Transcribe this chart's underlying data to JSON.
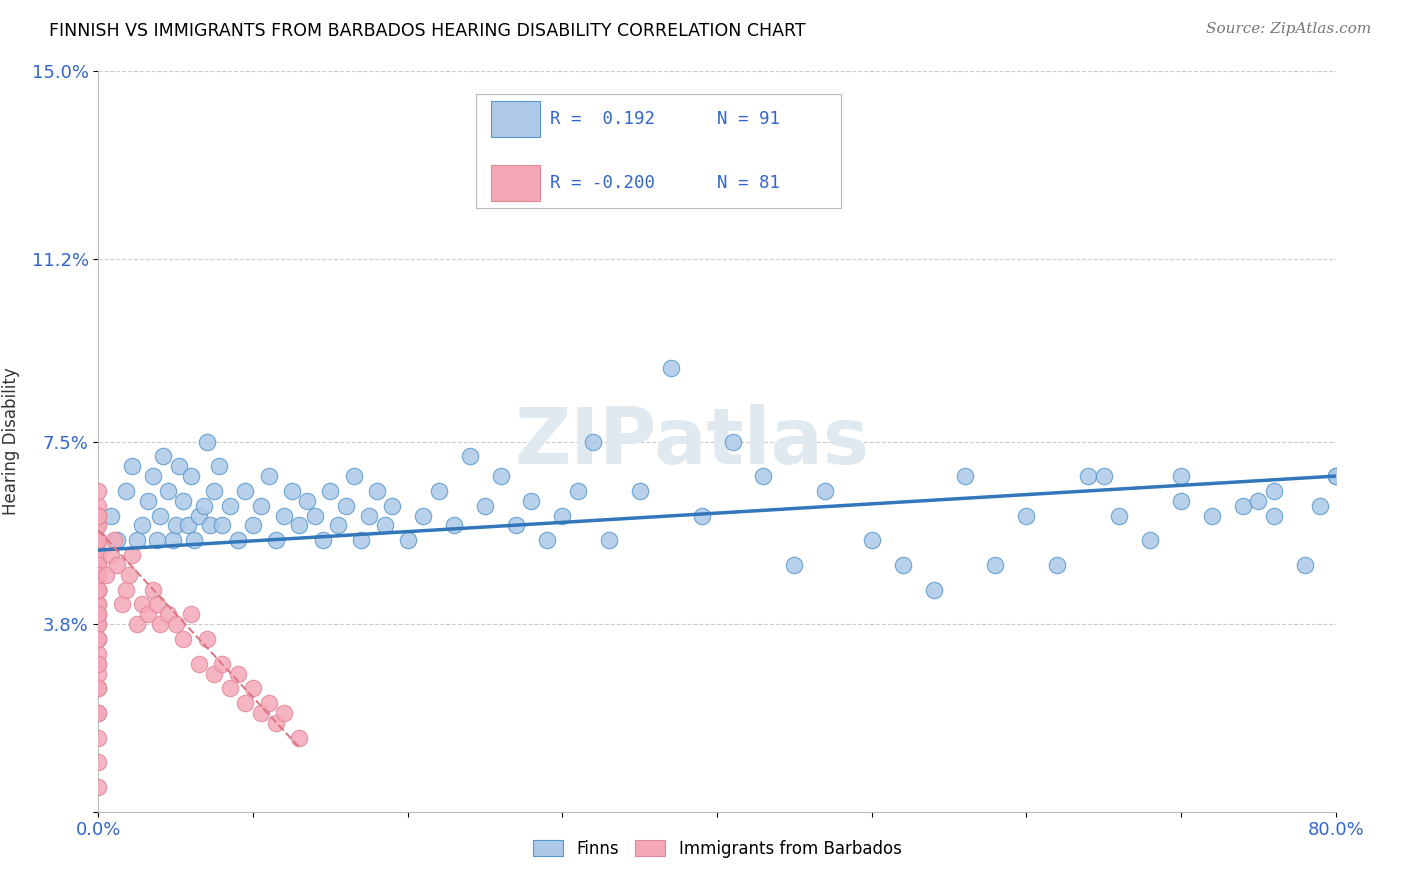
{
  "title": "FINNISH VS IMMIGRANTS FROM BARBADOS HEARING DISABILITY CORRELATION CHART",
  "source": "Source: ZipAtlas.com",
  "ylabel": "Hearing Disability",
  "xlim": [
    0.0,
    0.8
  ],
  "ylim": [
    0.0,
    0.15
  ],
  "xtick_positions": [
    0.0,
    0.1,
    0.2,
    0.3,
    0.4,
    0.5,
    0.6,
    0.7,
    0.8
  ],
  "xtick_labels": [
    "0.0%",
    "",
    "",
    "",
    "",
    "",
    "",
    "",
    "80.0%"
  ],
  "ytick_values": [
    0.0,
    0.038,
    0.075,
    0.112,
    0.15
  ],
  "ytick_labels": [
    "",
    "3.8%",
    "7.5%",
    "11.2%",
    "15.0%"
  ],
  "legend_line1": "R =  0.192   N = 91",
  "legend_line2": "R = -0.200   N = 81",
  "legend_label1": "Finns",
  "legend_label2": "Immigrants from Barbados",
  "color_finns": "#adc8e8",
  "color_immigrants": "#f4a8b8",
  "color_finns_edge": "#5599cc",
  "color_immigrants_edge": "#e08898",
  "color_finns_line": "#3377bb",
  "color_immigrants_line": "#dd7788",
  "color_r_text": "#3366cc",
  "color_n_text": "#3366cc",
  "watermark_text": "ZIPatlas",
  "background_color": "#ffffff",
  "grid_color": "#cccccc",
  "finns_x": [
    0.008,
    0.012,
    0.018,
    0.022,
    0.025,
    0.028,
    0.032,
    0.035,
    0.038,
    0.04,
    0.042,
    0.045,
    0.048,
    0.05,
    0.052,
    0.055,
    0.058,
    0.06,
    0.062,
    0.065,
    0.068,
    0.07,
    0.072,
    0.075,
    0.078,
    0.08,
    0.085,
    0.09,
    0.095,
    0.1,
    0.105,
    0.11,
    0.115,
    0.12,
    0.125,
    0.13,
    0.135,
    0.14,
    0.145,
    0.15,
    0.155,
    0.16,
    0.165,
    0.17,
    0.175,
    0.18,
    0.185,
    0.19,
    0.2,
    0.21,
    0.22,
    0.23,
    0.24,
    0.25,
    0.26,
    0.27,
    0.28,
    0.29,
    0.3,
    0.31,
    0.32,
    0.33,
    0.35,
    0.37,
    0.39,
    0.41,
    0.43,
    0.45,
    0.47,
    0.5,
    0.52,
    0.54,
    0.56,
    0.58,
    0.6,
    0.62,
    0.64,
    0.66,
    0.68,
    0.7,
    0.72,
    0.74,
    0.76,
    0.78,
    0.79,
    0.8,
    0.65,
    0.7,
    0.75,
    0.8,
    0.76
  ],
  "finns_y": [
    0.06,
    0.055,
    0.065,
    0.07,
    0.055,
    0.058,
    0.063,
    0.068,
    0.055,
    0.06,
    0.072,
    0.065,
    0.055,
    0.058,
    0.07,
    0.063,
    0.058,
    0.068,
    0.055,
    0.06,
    0.062,
    0.075,
    0.058,
    0.065,
    0.07,
    0.058,
    0.062,
    0.055,
    0.065,
    0.058,
    0.062,
    0.068,
    0.055,
    0.06,
    0.065,
    0.058,
    0.063,
    0.06,
    0.055,
    0.065,
    0.058,
    0.062,
    0.068,
    0.055,
    0.06,
    0.065,
    0.058,
    0.062,
    0.055,
    0.06,
    0.065,
    0.058,
    0.072,
    0.062,
    0.068,
    0.058,
    0.063,
    0.055,
    0.06,
    0.065,
    0.075,
    0.055,
    0.065,
    0.09,
    0.06,
    0.075,
    0.068,
    0.05,
    0.065,
    0.055,
    0.05,
    0.045,
    0.068,
    0.05,
    0.06,
    0.05,
    0.068,
    0.06,
    0.055,
    0.068,
    0.06,
    0.062,
    0.065,
    0.05,
    0.062,
    0.068,
    0.068,
    0.063,
    0.063,
    0.068,
    0.06
  ],
  "immigrants_x": [
    0.0,
    0.0,
    0.0,
    0.0,
    0.0,
    0.0,
    0.0,
    0.0,
    0.0,
    0.0,
    0.0,
    0.0,
    0.0,
    0.0,
    0.0,
    0.0,
    0.0,
    0.0,
    0.0,
    0.0,
    0.0,
    0.0,
    0.0,
    0.0,
    0.0,
    0.0,
    0.0,
    0.0,
    0.0,
    0.0,
    0.0,
    0.0,
    0.0,
    0.0,
    0.0,
    0.0,
    0.0,
    0.0,
    0.0,
    0.0,
    0.0,
    0.0,
    0.0,
    0.0,
    0.0,
    0.0,
    0.0,
    0.0,
    0.0,
    0.0,
    0.005,
    0.008,
    0.01,
    0.012,
    0.015,
    0.018,
    0.02,
    0.022,
    0.025,
    0.028,
    0.032,
    0.035,
    0.038,
    0.04,
    0.045,
    0.05,
    0.055,
    0.06,
    0.065,
    0.07,
    0.075,
    0.08,
    0.085,
    0.09,
    0.095,
    0.1,
    0.105,
    0.11,
    0.115,
    0.12,
    0.13
  ],
  "immigrants_y": [
    0.06,
    0.055,
    0.058,
    0.062,
    0.048,
    0.065,
    0.053,
    0.045,
    0.05,
    0.042,
    0.055,
    0.048,
    0.058,
    0.052,
    0.04,
    0.06,
    0.045,
    0.055,
    0.038,
    0.05,
    0.035,
    0.045,
    0.03,
    0.048,
    0.04,
    0.055,
    0.032,
    0.06,
    0.042,
    0.025,
    0.038,
    0.05,
    0.028,
    0.045,
    0.055,
    0.02,
    0.035,
    0.048,
    0.015,
    0.06,
    0.025,
    0.04,
    0.01,
    0.03,
    0.045,
    0.055,
    0.02,
    0.035,
    0.048,
    0.005,
    0.048,
    0.052,
    0.055,
    0.05,
    0.042,
    0.045,
    0.048,
    0.052,
    0.038,
    0.042,
    0.04,
    0.045,
    0.042,
    0.038,
    0.04,
    0.038,
    0.035,
    0.04,
    0.03,
    0.035,
    0.028,
    0.03,
    0.025,
    0.028,
    0.022,
    0.025,
    0.02,
    0.022,
    0.018,
    0.02,
    0.015
  ],
  "finns_line_x": [
    0.0,
    0.8
  ],
  "finns_line_y": [
    0.053,
    0.068
  ],
  "immigrants_line_x": [
    0.0,
    0.13
  ],
  "immigrants_line_y": [
    0.057,
    0.013
  ]
}
